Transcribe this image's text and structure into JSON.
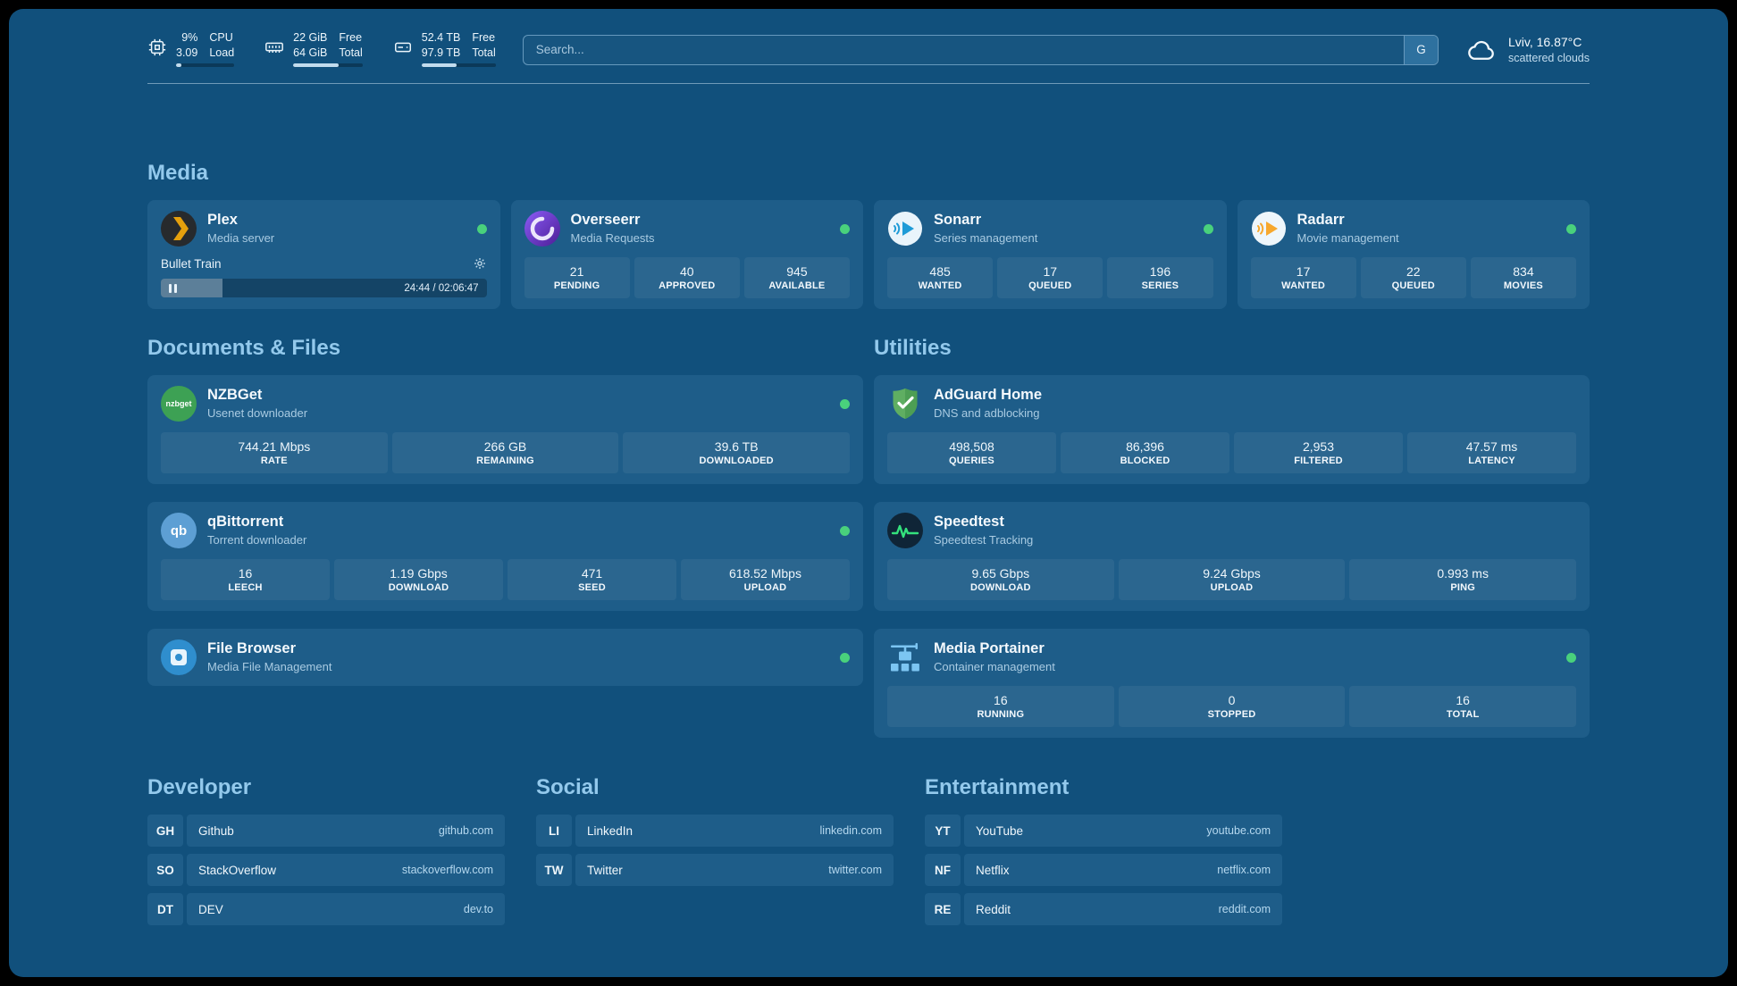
{
  "colors": {
    "background": "#11507c",
    "card": "#1e5d89",
    "heading": "#93c9ec",
    "status_green": "#49d17c"
  },
  "header": {
    "cpu": {
      "pct": "9%",
      "load": "3.09",
      "l1": "CPU",
      "l2": "Load",
      "bar": 9
    },
    "mem": {
      "v1": "22 GiB",
      "v2": "64 GiB",
      "l1": "Free",
      "l2": "Total",
      "bar": 65
    },
    "disk": {
      "v1": "52.4 TB",
      "v2": "97.9 TB",
      "l1": "Free",
      "l2": "Total",
      "bar": 47
    },
    "search": {
      "placeholder": "Search...",
      "button": "G"
    },
    "weather": {
      "location": "Lviv, 16.87°C",
      "condition": "scattered clouds"
    }
  },
  "media": {
    "heading": "Media",
    "plex": {
      "title": "Plex",
      "subtitle": "Media server",
      "now_playing": "Bullet Train",
      "time": "24:44 / 02:06:47",
      "progress": 19
    },
    "overseerr": {
      "title": "Overseerr",
      "subtitle": "Media Requests",
      "stats": [
        {
          "value": "21",
          "label": "PENDING"
        },
        {
          "value": "40",
          "label": "APPROVED"
        },
        {
          "value": "945",
          "label": "AVAILABLE"
        }
      ]
    },
    "sonarr": {
      "title": "Sonarr",
      "subtitle": "Series management",
      "stats": [
        {
          "value": "485",
          "label": "WANTED"
        },
        {
          "value": "17",
          "label": "QUEUED"
        },
        {
          "value": "196",
          "label": "SERIES"
        }
      ]
    },
    "radarr": {
      "title": "Radarr",
      "subtitle": "Movie management",
      "stats": [
        {
          "value": "17",
          "label": "WANTED"
        },
        {
          "value": "22",
          "label": "QUEUED"
        },
        {
          "value": "834",
          "label": "MOVIES"
        }
      ]
    }
  },
  "documents": {
    "heading": "Documents & Files",
    "nzbget": {
      "title": "NZBGet",
      "subtitle": "Usenet downloader",
      "icon_text": "nzbget",
      "stats": [
        {
          "value": "744.21 Mbps",
          "label": "RATE"
        },
        {
          "value": "266 GB",
          "label": "REMAINING"
        },
        {
          "value": "39.6 TB",
          "label": "DOWNLOADED"
        }
      ]
    },
    "qbittorrent": {
      "title": "qBittorrent",
      "subtitle": "Torrent downloader",
      "icon_text": "qb",
      "stats": [
        {
          "value": "16",
          "label": "LEECH"
        },
        {
          "value": "1.19 Gbps",
          "label": "DOWNLOAD"
        },
        {
          "value": "471",
          "label": "SEED"
        },
        {
          "value": "618.52 Mbps",
          "label": "UPLOAD"
        }
      ]
    },
    "filebrowser": {
      "title": "File Browser",
      "subtitle": "Media File Management"
    }
  },
  "utilities": {
    "heading": "Utilities",
    "adguard": {
      "title": "AdGuard Home",
      "subtitle": "DNS and adblocking",
      "stats": [
        {
          "value": "498,508",
          "label": "QUERIES"
        },
        {
          "value": "86,396",
          "label": "BLOCKED"
        },
        {
          "value": "2,953",
          "label": "FILTERED"
        },
        {
          "value": "47.57 ms",
          "label": "LATENCY"
        }
      ]
    },
    "speedtest": {
      "title": "Speedtest",
      "subtitle": "Speedtest Tracking",
      "stats": [
        {
          "value": "9.65 Gbps",
          "label": "DOWNLOAD"
        },
        {
          "value": "9.24 Gbps",
          "label": "UPLOAD"
        },
        {
          "value": "0.993 ms",
          "label": "PING"
        }
      ]
    },
    "portainer": {
      "title": "Media Portainer",
      "subtitle": "Container management",
      "stats": [
        {
          "value": "16",
          "label": "RUNNING"
        },
        {
          "value": "0",
          "label": "STOPPED"
        },
        {
          "value": "16",
          "label": "TOTAL"
        }
      ]
    }
  },
  "bookmarks": {
    "developer": {
      "heading": "Developer",
      "items": [
        {
          "abbr": "GH",
          "name": "Github",
          "domain": "github.com"
        },
        {
          "abbr": "SO",
          "name": "StackOverflow",
          "domain": "stackoverflow.com"
        },
        {
          "abbr": "DT",
          "name": "DEV",
          "domain": "dev.to"
        }
      ]
    },
    "social": {
      "heading": "Social",
      "items": [
        {
          "abbr": "LI",
          "name": "LinkedIn",
          "domain": "linkedin.com"
        },
        {
          "abbr": "TW",
          "name": "Twitter",
          "domain": "twitter.com"
        }
      ]
    },
    "entertainment": {
      "heading": "Entertainment",
      "items": [
        {
          "abbr": "YT",
          "name": "YouTube",
          "domain": "youtube.com"
        },
        {
          "abbr": "NF",
          "name": "Netflix",
          "domain": "netflix.com"
        },
        {
          "abbr": "RE",
          "name": "Reddit",
          "domain": "reddit.com"
        }
      ]
    }
  }
}
